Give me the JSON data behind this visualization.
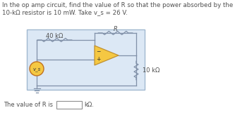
{
  "title": "In the op amp circuit, find the value of R so that the power absorbed by the 10-kΩ resistor is 10 mW. Take v_s = 26 V.",
  "bottom_text": "The value of R is",
  "bottom_unit": "kΩ.",
  "label_40k": "40 kΩ",
  "label_R": "R",
  "label_10k": "10 kΩ",
  "label_vs": "v_s",
  "bg_color": "#ffffff",
  "wire_color": "#8090a8",
  "box_color": "#a0b8d0",
  "op_amp_fill": "#f5c842",
  "op_amp_edge": "#c09030",
  "source_fill": "#f5c842",
  "source_edge": "#c07020",
  "text_color": "#505050",
  "font_size": 6.0,
  "title_font_size": 6.2
}
